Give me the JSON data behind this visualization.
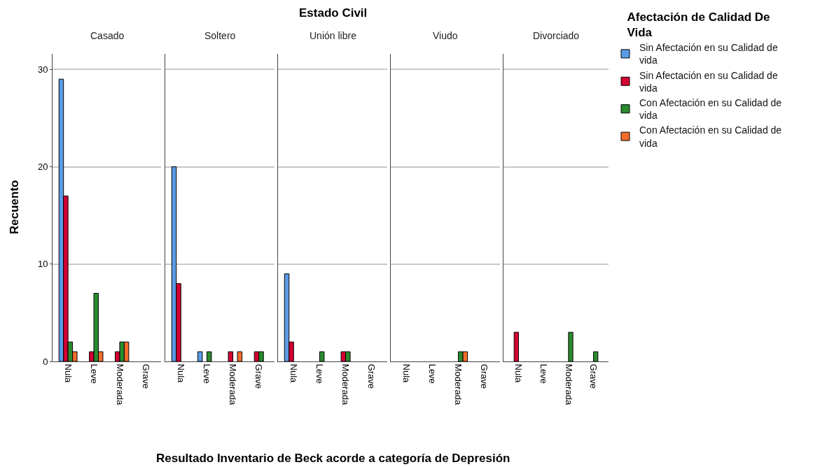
{
  "chart_data": [
    {
      "type": "bar",
      "title": "Casado",
      "ylabel": "Recuento",
      "categories": [
        "Nula",
        "Leve",
        "Moderada",
        "Grave"
      ],
      "ylim": [
        0,
        31.6
      ],
      "yticks": [
        0,
        10,
        20,
        30
      ],
      "grid": "y",
      "series": [
        {
          "color": "#5a9be6",
          "values": [
            29,
            null,
            null,
            null
          ]
        },
        {
          "color": "#d50032",
          "values": [
            17,
            1,
            1,
            null
          ]
        },
        {
          "color": "#2a8b2e",
          "values": [
            2,
            7,
            2,
            null
          ]
        },
        {
          "color": "#f36c2b",
          "values": [
            1,
            1,
            2,
            null
          ]
        }
      ]
    },
    {
      "type": "bar",
      "title": "Soltero",
      "categories": [
        "Nula",
        "Leve",
        "Moderada",
        "Grave"
      ],
      "ylim": [
        0,
        31.6
      ],
      "yticks": [
        0,
        10,
        20,
        30
      ],
      "grid": "y",
      "tick_labels": "x",
      "series": [
        {
          "color": "#5a9be6",
          "values": [
            20,
            1,
            null,
            null
          ]
        },
        {
          "color": "#d50032",
          "values": [
            8,
            null,
            1,
            1
          ]
        },
        {
          "color": "#2a8b2e",
          "values": [
            null,
            1,
            null,
            1
          ]
        },
        {
          "color": "#f36c2b",
          "values": [
            null,
            null,
            1,
            null
          ]
        }
      ]
    },
    {
      "type": "bar",
      "title": "Unión libre",
      "annotations": [
        "Estado Civil"
      ],
      "xlabel": "Resultado Inventario de Beck acorde a categoría de Depresión",
      "categories": [
        "Nula",
        "Leve",
        "Moderada",
        "Grave"
      ],
      "ylim": [
        0,
        31.6
      ],
      "yticks": [
        0,
        10,
        20,
        30
      ],
      "grid": "y",
      "tick_labels": "x",
      "series": [
        {
          "color": "#5a9be6",
          "values": [
            9,
            null,
            null,
            null
          ]
        },
        {
          "color": "#d50032",
          "values": [
            2,
            null,
            1,
            null
          ]
        },
        {
          "color": "#2a8b2e",
          "values": [
            null,
            1,
            1,
            null
          ]
        },
        {
          "color": "#f36c2b",
          "values": [
            null,
            null,
            null,
            null
          ]
        }
      ]
    },
    {
      "type": "bar",
      "title": "Viudo",
      "categories": [
        "Nula",
        "Leve",
        "Moderada",
        "Grave"
      ],
      "ylim": [
        0,
        31.6
      ],
      "yticks": [
        0,
        10,
        20,
        30
      ],
      "grid": "y",
      "tick_labels": "x",
      "series": [
        {
          "color": "#5a9be6",
          "values": [
            null,
            null,
            null,
            null
          ]
        },
        {
          "color": "#d50032",
          "values": [
            null,
            null,
            null,
            null
          ]
        },
        {
          "color": "#2a8b2e",
          "values": [
            null,
            null,
            1,
            null
          ]
        },
        {
          "color": "#f36c2b",
          "values": [
            null,
            null,
            1,
            null
          ]
        }
      ]
    },
    {
      "type": "bar",
      "title": "Divorciado",
      "legend_title": "Afectación de Calidad De Vida",
      "legend": "right",
      "categories": [
        "Nula",
        "Leve",
        "Moderada",
        "Grave"
      ],
      "ylim": [
        0,
        31.6
      ],
      "yticks": [
        0,
        10,
        20,
        30
      ],
      "grid": "y",
      "tick_labels": "x",
      "series": [
        {
          "name": "Sin Afectación en su Calidad de vida",
          "color": "#5a9be6",
          "values": [
            null,
            null,
            null,
            null
          ]
        },
        {
          "name": "Sin Afectación en su Calidad de vida",
          "color": "#d50032",
          "values": [
            3,
            null,
            null,
            null
          ]
        },
        {
          "name": "Con Afectación en su Calidad de vida",
          "color": "#2a8b2e",
          "values": [
            null,
            null,
            3,
            1
          ]
        },
        {
          "name": "Con Afectación en su Calidad de vida",
          "color": "#f36c2b",
          "values": [
            null,
            null,
            null,
            null
          ]
        }
      ]
    }
  ]
}
